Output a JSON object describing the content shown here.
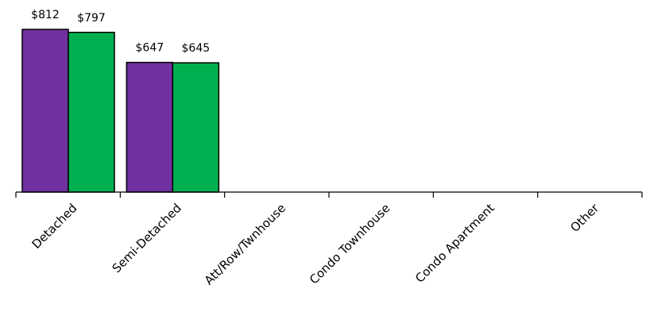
{
  "chart_data": {
    "type": "bar",
    "categories": [
      "Detached",
      "Semi-Detached",
      "Att/Row/Twnhouse",
      "Condo Townhouse",
      "Condo Apartment",
      "Other"
    ],
    "series": [
      {
        "values": [
          812,
          647,
          null,
          null,
          null,
          null
        ],
        "labels": [
          "$812",
          "$647",
          "",
          "",
          "",
          ""
        ],
        "color": "#7030A0"
      },
      {
        "values": [
          797,
          645,
          null,
          null,
          null,
          null
        ],
        "labels": [
          "$797",
          "$645",
          "",
          "",
          "",
          ""
        ],
        "color": "#00B050"
      }
    ],
    "title": "",
    "xlabel": "",
    "ylabel": "",
    "ylim": [
      0,
      812
    ],
    "grid": false,
    "legend": "none"
  }
}
